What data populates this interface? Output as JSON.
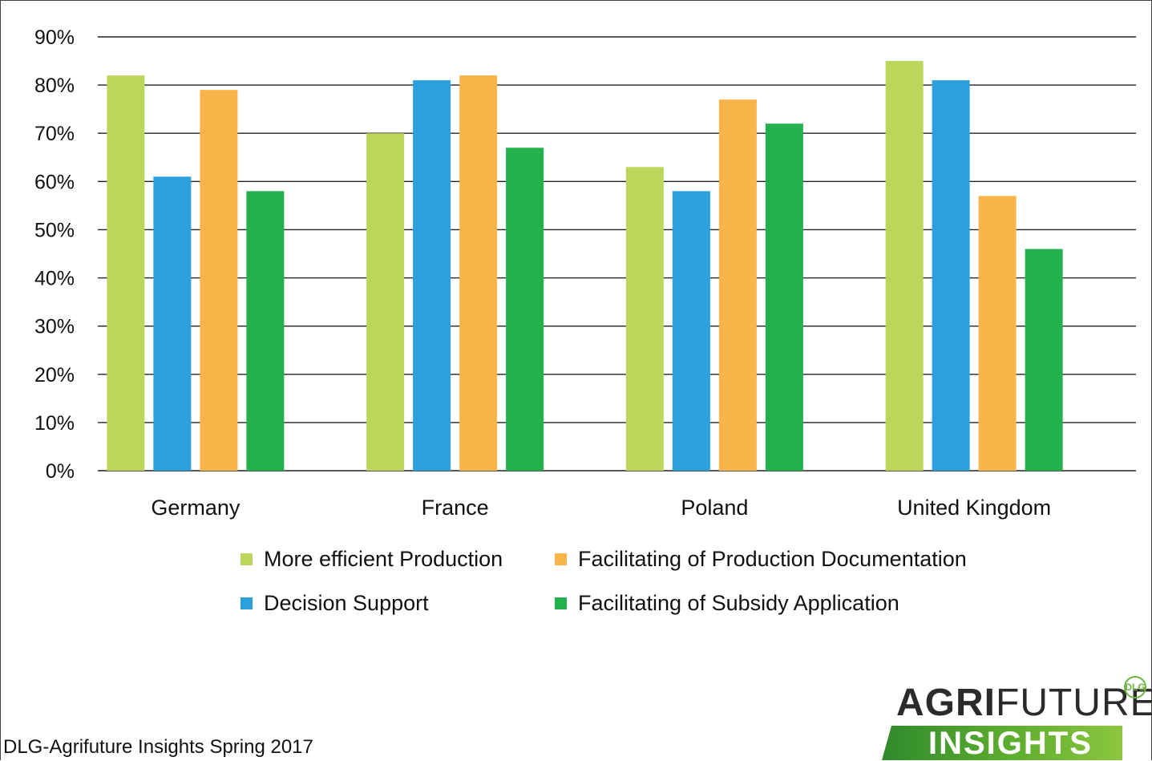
{
  "chart_data": {
    "type": "bar",
    "categories": [
      "Germany",
      "France",
      "Poland",
      "United Kingdom"
    ],
    "series": [
      {
        "name": "More efficient Production",
        "color": "#bcd65b",
        "values": [
          82,
          70,
          63,
          85
        ]
      },
      {
        "name": "Decision Support",
        "color": "#2aa1dc",
        "values": [
          61,
          81,
          58,
          81
        ]
      },
      {
        "name": "Facilitating of Production Documentation",
        "color": "#f9b44a",
        "values": [
          79,
          82,
          77,
          57
        ]
      },
      {
        "name": "Facilitating of Subsidy Application",
        "color": "#22b14c",
        "values": [
          58,
          67,
          72,
          46
        ]
      }
    ],
    "yticks": [
      "0%",
      "10%",
      "20%",
      "30%",
      "40%",
      "50%",
      "60%",
      "70%",
      "80%",
      "90%"
    ],
    "ylim": [
      0,
      90
    ],
    "grid": true,
    "legend_position": "bottom"
  },
  "legend": [
    {
      "label": "More efficient Production",
      "color": "#bcd65b"
    },
    {
      "label": "Facilitating of Production Documentation",
      "color": "#f9b44a"
    },
    {
      "label": "Decision Support",
      "color": "#2aa1dc"
    },
    {
      "label": "Facilitating of Subsidy Application",
      "color": "#22b14c"
    }
  ],
  "source": "DLG-Agrifuture Insights Spring 2017",
  "logo": {
    "top_bold": "AGRI",
    "top_light": "FUTURE",
    "bottom": "INSIGHTS",
    "badge": "DLG"
  }
}
